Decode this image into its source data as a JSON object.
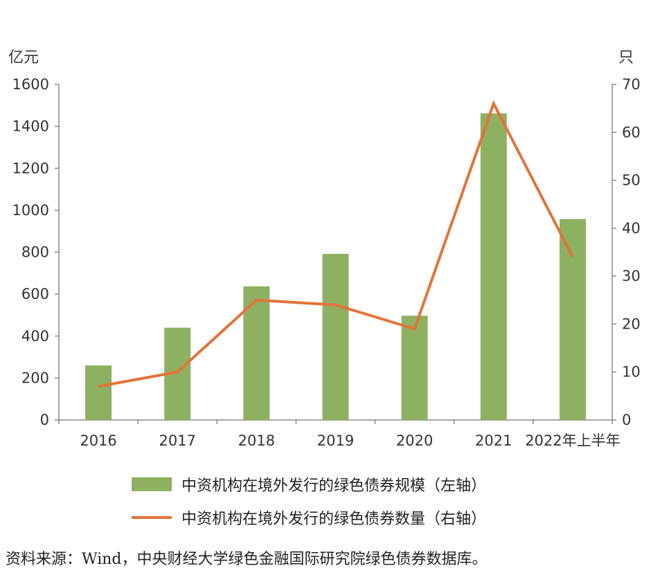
{
  "chart_data": {
    "type": "bar",
    "categories": [
      "2016",
      "2017",
      "2018",
      "2019",
      "2020",
      "2021",
      "2022年上半年"
    ],
    "series": [
      {
        "name": "中资机构在境外发行的绿色债券规模（左轴）",
        "type": "bar",
        "axis": "left",
        "values": [
          260,
          440,
          637,
          792,
          497,
          1462,
          958
        ]
      },
      {
        "name": "中资机构在境外发行的绿色债券数量（右轴）",
        "type": "line",
        "axis": "right",
        "values": [
          7,
          10,
          25,
          24,
          19,
          66,
          34
        ]
      }
    ],
    "y_left": {
      "unit": "亿元",
      "ylim": [
        0,
        1600
      ],
      "ticks": [
        0,
        200,
        400,
        600,
        800,
        1000,
        1200,
        1400,
        1600
      ]
    },
    "y_right": {
      "unit": "只",
      "ylim": [
        0,
        70
      ],
      "ticks": [
        0,
        10,
        20,
        30,
        40,
        50,
        60,
        70
      ]
    },
    "grid": false,
    "legend_position": "bottom",
    "colors": {
      "bar": "#8db160",
      "line": "#e2733b"
    }
  },
  "source_note": "资料来源：Wind，中央财经大学绿色金融国际研究院绿色债券数据库。"
}
